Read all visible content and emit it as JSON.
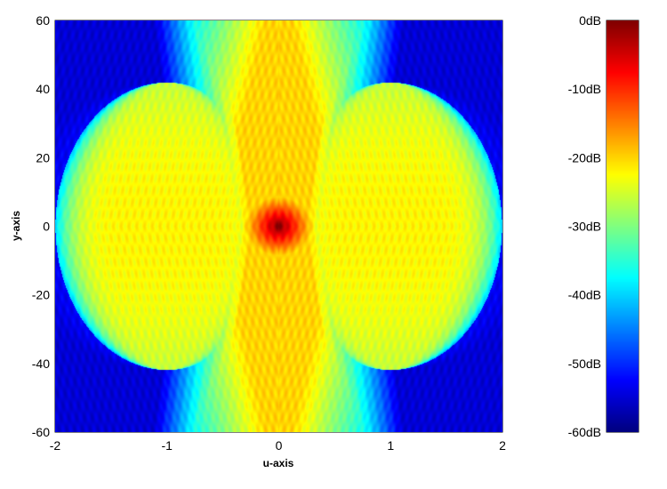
{
  "chart_data": {
    "type": "heatmap",
    "title": "",
    "xlabel": "u-axis",
    "ylabel": "y-axis",
    "xlim": [
      -2,
      2
    ],
    "ylim": [
      -60,
      60
    ],
    "x_ticks": [
      -2,
      -1,
      0,
      1,
      2
    ],
    "y_ticks": [
      60,
      40,
      20,
      0,
      -20,
      -40,
      -60
    ],
    "x_tick_labels": [
      "-2",
      "-1",
      "0",
      "1",
      "2"
    ],
    "y_tick_labels": [
      "60",
      "40",
      "20",
      "0",
      "-20",
      "-40",
      "-60"
    ],
    "colormap": "jet",
    "colorbar": {
      "range": [
        -60,
        0
      ],
      "unit": "dB",
      "ticks": [
        0,
        -10,
        -20,
        -30,
        -40,
        -50,
        -60
      ],
      "tick_labels": [
        "0dB",
        "-10dB",
        "-20dB",
        "-30dB",
        "-40dB",
        "-50dB",
        "-60dB"
      ],
      "placement": "right"
    },
    "features": {
      "peak": {
        "u": 0,
        "y": 0,
        "level_db": 0
      },
      "lobe_centers": [
        {
          "u": -1,
          "y": 0,
          "level_db": -22
        },
        {
          "u": 1,
          "y": 0,
          "level_db": -22
        }
      ],
      "lobe_half_height_y": 42,
      "background_level_db": -55
    }
  }
}
